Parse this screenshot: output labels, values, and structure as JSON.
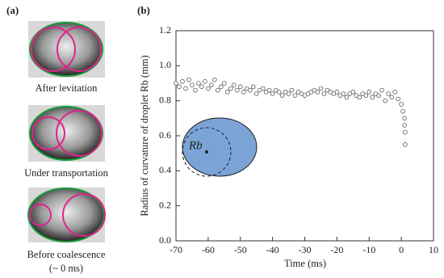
{
  "panel_a": {
    "label": "(a)",
    "captions": [
      "After levitation",
      "Under transportation",
      "Before coalescence",
      "(~ 0 ms)"
    ]
  },
  "chart_data": {
    "type": "scatter",
    "panel_label": "(b)",
    "xlabel": "Time (ms)",
    "ylabel": "Radius of curvature of droplet Rb (mm)",
    "inset_label": "Rb",
    "color": "#555555",
    "x": [
      -70,
      -69,
      -68,
      -67,
      -66,
      -65,
      -64,
      -63,
      -62,
      -61,
      -60,
      -59,
      -58,
      -57,
      -56,
      -55,
      -54,
      -53,
      -52,
      -51,
      -50,
      -49,
      -48,
      -47,
      -46,
      -45,
      -44,
      -43,
      -42,
      -41,
      -40,
      -39,
      -38,
      -37,
      -36,
      -35,
      -34,
      -33,
      -32,
      -31,
      -30,
      -29,
      -28,
      -27,
      -26,
      -25,
      -24,
      -23,
      -22,
      -21,
      -20,
      -19,
      -18,
      -17,
      -16,
      -15,
      -14,
      -13,
      -12,
      -11,
      -10,
      -9,
      -8,
      -7,
      -6,
      -5,
      -4,
      -3,
      -2,
      -1,
      0,
      0.5,
      1,
      1,
      1.2,
      1.2
    ],
    "values": [
      0.9,
      0.88,
      0.91,
      0.87,
      0.92,
      0.89,
      0.86,
      0.9,
      0.88,
      0.91,
      0.87,
      0.89,
      0.92,
      0.86,
      0.88,
      0.9,
      0.85,
      0.87,
      0.89,
      0.86,
      0.88,
      0.85,
      0.87,
      0.86,
      0.88,
      0.84,
      0.86,
      0.87,
      0.85,
      0.86,
      0.84,
      0.86,
      0.85,
      0.83,
      0.85,
      0.84,
      0.86,
      0.83,
      0.85,
      0.84,
      0.83,
      0.84,
      0.85,
      0.86,
      0.85,
      0.87,
      0.84,
      0.86,
      0.85,
      0.84,
      0.85,
      0.83,
      0.84,
      0.82,
      0.84,
      0.85,
      0.83,
      0.82,
      0.84,
      0.83,
      0.85,
      0.82,
      0.84,
      0.83,
      0.86,
      0.8,
      0.84,
      0.82,
      0.85,
      0.81,
      0.78,
      0.74,
      0.7,
      0.66,
      0.62,
      0.55
    ],
    "xlim": [
      -70,
      10
    ],
    "xticks": [
      -70,
      -60,
      -50,
      -40,
      -30,
      -20,
      -10,
      0,
      10
    ],
    "ylim": [
      0,
      1.2
    ],
    "yticks": [
      {
        "value": 0,
        "label": "0.0"
      },
      {
        "value": 0.2,
        "label": "0.2"
      },
      {
        "value": 0.4,
        "label": "0.4"
      },
      {
        "value": 0.6,
        "label": "0.6"
      },
      {
        "value": 0.8,
        "label": "0.8"
      },
      {
        "value": 1,
        "label": "1.0"
      },
      {
        "value": 1.2,
        "label": "1.2"
      }
    ]
  }
}
